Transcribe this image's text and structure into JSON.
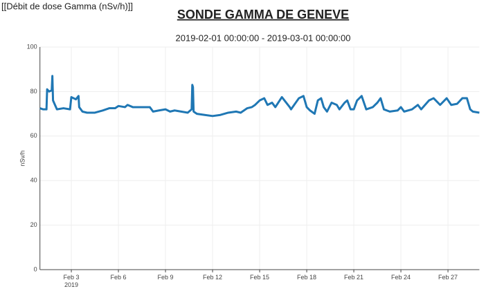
{
  "header_label": "[[Débit de dose Gamma (nSv/h)]]",
  "chart_data": {
    "type": "line",
    "title": "SONDE GAMMA DE GENEVE",
    "subtitle": "2019-02-01 00:00:00 - 2019-03-01 00:00:00",
    "y_label": "nSv/h",
    "xlim": [
      "2019-02-01 00:00",
      "2019-03-01 00:00"
    ],
    "ylim": [
      0,
      100
    ],
    "yticks": [
      0,
      20,
      40,
      60,
      80,
      100
    ],
    "xticks": [
      {
        "value": "2019-02-03 00:00",
        "label": "Feb 3"
      },
      {
        "value": "2019-02-06 00:00",
        "label": "Feb 6"
      },
      {
        "value": "2019-02-09 00:00",
        "label": "Feb 9"
      },
      {
        "value": "2019-02-12 00:00",
        "label": "Feb 12"
      },
      {
        "value": "2019-02-15 00:00",
        "label": "Feb 15"
      },
      {
        "value": "2019-02-18 00:00",
        "label": "Feb 18"
      },
      {
        "value": "2019-02-21 00:00",
        "label": "Feb 21"
      },
      {
        "value": "2019-02-24 00:00",
        "label": "Feb 24"
      },
      {
        "value": "2019-02-27 00:00",
        "label": "Feb 27"
      }
    ],
    "xtick_year": "2019",
    "grid": true,
    "x": [
      "2019-02-01 00:00",
      "2019-02-01 05:00",
      "2019-02-01 10:00",
      "2019-02-01 11:00",
      "2019-02-01 14:00",
      "2019-02-01 18:00",
      "2019-02-01 19:00",
      "2019-02-01 20:00",
      "2019-02-01 23:00",
      "2019-02-02 02:00",
      "2019-02-02 12:00",
      "2019-02-02 22:00",
      "2019-02-03 00:00",
      "2019-02-03 07:00",
      "2019-02-03 11:00",
      "2019-02-03 12:00",
      "2019-02-03 17:00",
      "2019-02-04 00:00",
      "2019-02-04 12:00",
      "2019-02-05 00:00",
      "2019-02-05 10:00",
      "2019-02-05 19:00",
      "2019-02-06 00:00",
      "2019-02-06 10:00",
      "2019-02-06 14:00",
      "2019-02-06 22:00",
      "2019-02-07 12:00",
      "2019-02-08 00:00",
      "2019-02-08 05:00",
      "2019-02-08 14:00",
      "2019-02-09 00:00",
      "2019-02-09 07:00",
      "2019-02-09 14:00",
      "2019-02-10 00:00",
      "2019-02-10 10:00",
      "2019-02-10 16:00",
      "2019-02-10 17:00",
      "2019-02-10 18:00",
      "2019-02-10 19:00",
      "2019-02-11 00:00",
      "2019-02-11 12:00",
      "2019-02-12 00:00",
      "2019-02-12 12:00",
      "2019-02-13 00:00",
      "2019-02-13 12:00",
      "2019-02-13 19:00",
      "2019-02-14 05:00",
      "2019-02-14 12:00",
      "2019-02-14 17:00",
      "2019-02-15 00:00",
      "2019-02-15 07:00",
      "2019-02-15 12:00",
      "2019-02-15 19:00",
      "2019-02-16 00:00",
      "2019-02-16 10:00",
      "2019-02-16 14:00",
      "2019-02-16 22:00",
      "2019-02-17 00:00",
      "2019-02-17 12:00",
      "2019-02-17 19:00",
      "2019-02-18 00:00",
      "2019-02-18 05:00",
      "2019-02-18 12:00",
      "2019-02-18 17:00",
      "2019-02-18 22:00",
      "2019-02-19 02:00",
      "2019-02-19 07:00",
      "2019-02-19 14:00",
      "2019-02-19 22:00",
      "2019-02-20 02:00",
      "2019-02-20 10:00",
      "2019-02-20 14:00",
      "2019-02-20 19:00",
      "2019-02-21 00:00",
      "2019-02-21 05:00",
      "2019-02-21 12:00",
      "2019-02-21 19:00",
      "2019-02-22 05:00",
      "2019-02-22 12:00",
      "2019-02-22 17:00",
      "2019-02-22 22:00",
      "2019-02-23 07:00",
      "2019-02-23 19:00",
      "2019-02-24 00:00",
      "2019-02-24 05:00",
      "2019-02-24 17:00",
      "2019-02-25 02:00",
      "2019-02-25 07:00",
      "2019-02-25 19:00",
      "2019-02-26 02:00",
      "2019-02-26 12:00",
      "2019-02-26 22:00",
      "2019-02-27 05:00",
      "2019-02-27 14:00",
      "2019-02-27 22:00",
      "2019-02-28 05:00",
      "2019-02-28 10:00",
      "2019-02-28 14:00",
      "2019-03-01 00:00"
    ],
    "series": [
      {
        "name": "nSv/h",
        "color": "#1f77b4",
        "values": [
          72.5,
          72,
          72,
          81,
          80,
          80.5,
          87,
          76,
          74,
          72,
          72.5,
          72,
          77.5,
          76.5,
          78,
          73,
          71,
          70.5,
          70.5,
          71.5,
          72.5,
          72.5,
          73.5,
          73,
          74,
          73,
          73,
          73,
          71,
          71.5,
          72,
          71,
          71.5,
          71,
          70.5,
          72,
          83,
          82,
          71,
          70,
          69.5,
          69,
          69.5,
          70.5,
          71,
          70.5,
          72.5,
          73,
          74,
          76,
          77,
          74,
          75,
          73,
          77.5,
          76,
          73,
          72,
          77,
          78,
          73,
          71.5,
          70,
          76,
          77,
          73,
          71,
          75,
          74,
          72,
          75,
          76,
          72,
          72,
          76,
          78,
          72,
          73,
          75,
          77,
          72,
          71,
          71.5,
          73,
          71,
          72,
          74,
          72,
          76,
          77,
          74,
          77,
          74,
          74.5,
          77,
          77,
          72,
          71,
          70.5
        ]
      }
    ]
  }
}
